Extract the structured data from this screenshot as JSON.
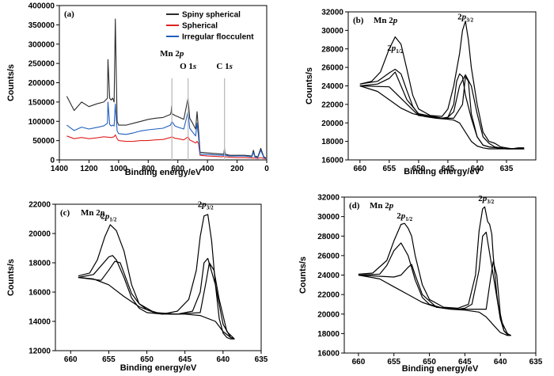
{
  "chart_data": [
    {
      "type": "line",
      "panel_label": "(a)",
      "xlabel": "Binding energy/eV",
      "ylabel": "Counts/s",
      "xlim": [
        1400,
        0
      ],
      "ylim": [
        0,
        400000
      ],
      "xticks": [
        1400,
        1200,
        1000,
        800,
        600,
        400,
        200,
        0
      ],
      "yticks": [
        0,
        50000,
        100000,
        150000,
        200000,
        250000,
        300000,
        350000,
        400000
      ],
      "legend_position": "top-right",
      "annotations": [
        {
          "text": "Mn 2",
          "italic": "p",
          "x": 640
        },
        {
          "text": "O 1",
          "italic": "s",
          "x": 531
        },
        {
          "text": "C 1",
          "italic": "s",
          "x": 285
        }
      ],
      "series": [
        {
          "name": "Spiny spherical",
          "color": "#2b2b2b",
          "x": [
            1350,
            1300,
            1250,
            1200,
            1150,
            1100,
            1075,
            1072,
            1060,
            1050,
            1040,
            1030,
            1022,
            1010,
            1000,
            950,
            900,
            850,
            800,
            750,
            700,
            650,
            645,
            642,
            640,
            620,
            600,
            560,
            531,
            520,
            500,
            480,
            470,
            460,
            450,
            400,
            300,
            290,
            285,
            280,
            250,
            200,
            150,
            100,
            90,
            80,
            60,
            40,
            20,
            5
          ],
          "y": [
            165000,
            128000,
            150000,
            138000,
            145000,
            150000,
            160000,
            260000,
            160000,
            155000,
            160000,
            150000,
            365000,
            100000,
            90000,
            90000,
            95000,
            100000,
            105000,
            108000,
            110000,
            118000,
            125000,
            140000,
            120000,
            115000,
            112000,
            105000,
            160000,
            108000,
            95000,
            80000,
            125000,
            75000,
            20000,
            18000,
            15000,
            15000,
            30000,
            15000,
            12000,
            12000,
            12000,
            10000,
            25000,
            10000,
            8000,
            30000,
            8000,
            5000
          ]
        },
        {
          "name": "Spherical",
          "color": "#e02020",
          "x": [
            1350,
            1300,
            1250,
            1200,
            1150,
            1100,
            1050,
            1030,
            1022,
            1010,
            1000,
            950,
            900,
            850,
            800,
            750,
            700,
            650,
            640,
            620,
            600,
            560,
            531,
            520,
            500,
            480,
            470,
            460,
            450,
            400,
            300,
            285,
            280,
            250,
            200,
            150,
            100,
            80,
            60,
            40,
            20,
            5
          ],
          "y": [
            62000,
            55000,
            58000,
            55000,
            57000,
            60000,
            58000,
            60000,
            65000,
            55000,
            50000,
            48000,
            48000,
            50000,
            50000,
            52000,
            53000,
            58000,
            60000,
            56000,
            55000,
            52000,
            60000,
            52000,
            48000,
            44000,
            48000,
            42000,
            12000,
            10000,
            8000,
            10000,
            8000,
            7000,
            6000,
            6000,
            5000,
            5000,
            4000,
            6000,
            4000,
            3000
          ]
        },
        {
          "name": "Irregular flocculent",
          "color": "#1f5fbf",
          "x": [
            1350,
            1300,
            1250,
            1200,
            1150,
            1100,
            1075,
            1072,
            1060,
            1050,
            1040,
            1030,
            1022,
            1010,
            1000,
            950,
            900,
            850,
            800,
            750,
            700,
            650,
            645,
            640,
            620,
            600,
            560,
            531,
            520,
            500,
            480,
            470,
            460,
            450,
            400,
            300,
            290,
            285,
            280,
            250,
            200,
            150,
            100,
            90,
            80,
            60,
            40,
            20,
            5
          ],
          "y": [
            90000,
            76000,
            85000,
            80000,
            84000,
            88000,
            95000,
            150000,
            92000,
            88000,
            90000,
            88000,
            145000,
            75000,
            68000,
            66000,
            70000,
            75000,
            78000,
            80000,
            82000,
            90000,
            95000,
            100000,
            88000,
            85000,
            80000,
            125000,
            82000,
            72000,
            62000,
            95000,
            58000,
            15000,
            14000,
            12000,
            12000,
            25000,
            12000,
            10000,
            10000,
            10000,
            8000,
            20000,
            8000,
            6000,
            25000,
            6000,
            4000
          ]
        }
      ]
    },
    {
      "type": "line",
      "panel_label": "(b)",
      "title": "Mn 2",
      "title_italic": "p",
      "xlabel": "Binding energy/eV",
      "ylabel": "Counts/s",
      "xlim": [
        662,
        630
      ],
      "ylim": [
        16000,
        32000
      ],
      "xticks": [
        660,
        655,
        650,
        645,
        640,
        635
      ],
      "yticks": [
        16000,
        18000,
        20000,
        22000,
        24000,
        26000,
        28000,
        30000,
        32000
      ],
      "peak_labels": [
        {
          "main": "2p",
          "sub": "1/2",
          "x": 654,
          "y": 27800
        },
        {
          "main": "2p",
          "sub": "3/2",
          "x": 642,
          "y": 31200
        }
      ],
      "series": [
        {
          "name": "",
          "x": [
            660,
            658,
            656.5,
            655,
            654,
            653,
            652,
            651,
            650,
            648,
            646,
            645,
            644,
            643,
            642.5,
            642,
            641.5,
            641,
            640,
            639,
            638,
            637,
            636,
            635,
            634,
            633,
            632
          ],
          "y": [
            24200,
            24500,
            25500,
            28000,
            29300,
            28500,
            25800,
            23000,
            21500,
            20800,
            20700,
            21500,
            24000,
            27500,
            30000,
            31000,
            29000,
            26000,
            22000,
            19000,
            18000,
            17800,
            17400,
            17300,
            17200,
            17300,
            17300
          ]
        },
        {
          "name": "",
          "x": [
            660,
            657,
            655,
            654,
            653,
            652,
            651,
            650,
            648,
            646,
            645,
            644,
            643,
            642,
            641,
            640,
            639,
            638,
            637,
            636,
            635,
            634,
            633,
            632
          ],
          "y": [
            24200,
            24500,
            25400,
            25800,
            25300,
            23500,
            21800,
            20900,
            20600,
            20500,
            20600,
            21200,
            24000,
            25200,
            24000,
            21000,
            18500,
            17800,
            17400,
            17300,
            17200,
            17200,
            17300,
            17300
          ]
        },
        {
          "name": "",
          "x": [
            660,
            655,
            650,
            646,
            645,
            644,
            643.5,
            643,
            642.5,
            642,
            641,
            640,
            639,
            638,
            635,
            632
          ],
          "y": [
            24000,
            23900,
            20800,
            20500,
            20600,
            22000,
            24500,
            25300,
            25000,
            23000,
            20500,
            18500,
            17600,
            17400,
            17200,
            17200
          ]
        },
        {
          "name": "",
          "x": [
            660,
            657,
            655,
            654,
            653,
            652,
            650,
            646,
            645,
            644,
            642.5,
            642,
            641.5,
            641,
            640,
            639,
            638,
            635,
            632
          ],
          "y": [
            24000,
            24200,
            24800,
            25500,
            24000,
            22500,
            21000,
            20500,
            20500,
            20500,
            22000,
            25000,
            24500,
            21000,
            18500,
            17600,
            17400,
            17200,
            17200
          ]
        },
        {
          "name": "",
          "x": [
            660,
            657,
            655,
            653,
            651,
            649,
            647,
            645,
            644,
            643,
            642,
            641,
            640,
            639,
            638,
            636,
            634,
            632
          ],
          "y": [
            24000,
            23400,
            22500,
            21600,
            21000,
            20700,
            20500,
            20400,
            20300,
            20000,
            19000,
            18000,
            17500,
            17300,
            17200,
            17200,
            17200,
            17200
          ]
        }
      ]
    },
    {
      "type": "line",
      "panel_label": "(c)",
      "title": "Mn 2",
      "title_italic": "p",
      "xlabel": "Binding energy/eV",
      "ylabel": "Counts/s",
      "xlim": [
        662,
        635
      ],
      "ylim": [
        12000,
        22000
      ],
      "xticks": [
        660,
        655,
        650,
        645,
        640,
        635
      ],
      "yticks": [
        12000,
        14000,
        16000,
        18000,
        20000,
        22000
      ],
      "peak_labels": [
        {
          "main": "2p",
          "sub": "1/2",
          "x": 655,
          "y": 21000
        },
        {
          "main": "2p",
          "sub": "3/2",
          "x": 642.3,
          "y": 21800
        }
      ],
      "series": [
        {
          "name": "",
          "x": [
            659,
            657.5,
            656.5,
            655.5,
            654.8,
            654,
            653,
            652,
            651,
            650,
            648,
            646,
            644.5,
            643.5,
            643,
            642.5,
            642,
            641.5,
            641,
            640.5,
            640,
            639.5,
            639,
            638.5
          ],
          "y": [
            17100,
            17300,
            18200,
            19800,
            20600,
            20200,
            18800,
            16500,
            15200,
            14800,
            14500,
            14700,
            15500,
            17500,
            19800,
            21200,
            21300,
            19500,
            16500,
            14200,
            13200,
            12900,
            12800,
            12800
          ]
        },
        {
          "name": "",
          "x": [
            659,
            657,
            656,
            655,
            654.5,
            654,
            653,
            652,
            651,
            650,
            648,
            646,
            644,
            643,
            642.5,
            642,
            641,
            640,
            639,
            638.5
          ],
          "y": [
            17000,
            17200,
            17800,
            18400,
            18500,
            18200,
            17000,
            15600,
            14900,
            14600,
            14500,
            14500,
            14700,
            16000,
            18000,
            18300,
            16500,
            13800,
            12900,
            12800
          ]
        },
        {
          "name": "",
          "x": [
            659,
            656,
            655,
            654.2,
            653.5,
            653,
            652,
            651,
            649,
            646,
            643,
            642.2,
            641.8,
            641.2,
            640.5,
            639.5,
            638.5
          ],
          "y": [
            17000,
            16800,
            17500,
            18100,
            18000,
            17300,
            15900,
            15200,
            14600,
            14500,
            14600,
            16800,
            18000,
            17500,
            15500,
            13300,
            12800
          ]
        },
        {
          "name": "",
          "x": [
            659,
            657,
            655,
            653,
            651,
            649,
            647,
            645,
            643,
            641,
            640,
            639,
            638.5
          ],
          "y": [
            17000,
            16900,
            16500,
            15700,
            15000,
            14600,
            14500,
            14500,
            14400,
            14000,
            13300,
            12900,
            12800
          ]
        }
      ]
    },
    {
      "type": "line",
      "panel_label": "(d)",
      "title": "Mn 2",
      "title_italic": "p",
      "xlabel": "Binding energy/eV",
      "ylabel": "Counts/s",
      "xlim": [
        662,
        635
      ],
      "ylim": [
        16000,
        32000
      ],
      "xticks": [
        660,
        655,
        650,
        645,
        640,
        635
      ],
      "yticks": [
        16000,
        18000,
        20000,
        22000,
        24000,
        26000,
        28000,
        30000,
        32000
      ],
      "peak_labels": [
        {
          "main": "2p",
          "sub": "1/2",
          "x": 653.5,
          "y": 29800
        },
        {
          "main": "2p",
          "sub": "3/2",
          "x": 642,
          "y": 31600
        }
      ],
      "series": [
        {
          "name": "",
          "x": [
            660,
            658,
            656,
            655,
            654,
            653.5,
            653,
            652.5,
            652,
            651,
            650,
            648,
            646,
            644.5,
            643.5,
            643,
            642.5,
            642.2,
            641.8,
            641.5,
            641.2,
            641,
            640.5,
            640,
            639.5,
            639,
            638.5
          ],
          "y": [
            24100,
            24200,
            25500,
            27500,
            29200,
            29300,
            28800,
            28000,
            26000,
            23000,
            21500,
            20700,
            20600,
            21000,
            24000,
            28500,
            30800,
            31000,
            29500,
            29200,
            28200,
            26000,
            22000,
            19500,
            18300,
            17900,
            17800
          ]
        },
        {
          "name": "",
          "x": [
            660,
            657,
            656,
            655,
            654,
            653,
            652,
            651,
            650,
            648,
            646,
            645,
            644,
            643,
            642.5,
            642,
            641,
            640,
            639,
            638.5
          ],
          "y": [
            24000,
            24100,
            25000,
            26500,
            27300,
            26000,
            23500,
            21700,
            21000,
            20600,
            20500,
            20600,
            21000,
            24500,
            28000,
            28400,
            24000,
            19500,
            18000,
            17800
          ]
        },
        {
          "name": "",
          "x": [
            660,
            655,
            654,
            653,
            652.5,
            652,
            651,
            649,
            646,
            642,
            641.5,
            641,
            640.5,
            640,
            639.5,
            639,
            638.5
          ],
          "y": [
            24000,
            23800,
            24000,
            24800,
            25100,
            24000,
            22000,
            20700,
            20500,
            20500,
            23000,
            25400,
            24000,
            20000,
            18300,
            17900,
            17800
          ]
        },
        {
          "name": "",
          "x": [
            660,
            657,
            655,
            653,
            651,
            649,
            647,
            645,
            643,
            642,
            641,
            640,
            639,
            638.5
          ],
          "y": [
            24000,
            23600,
            22800,
            22000,
            21200,
            20700,
            20500,
            20400,
            20200,
            19700,
            18900,
            18100,
            17800,
            17800
          ]
        }
      ]
    }
  ]
}
